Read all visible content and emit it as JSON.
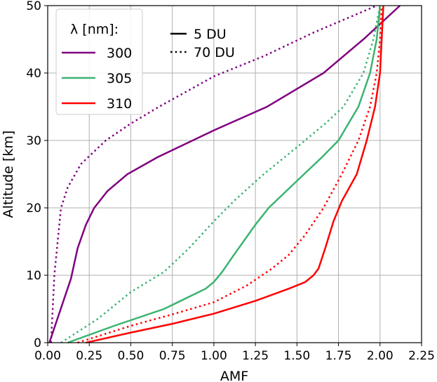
{
  "chart_data": {
    "type": "line",
    "xlabel": "AMF",
    "ylabel": "Altitude [km]",
    "xlim": [
      0,
      2.25
    ],
    "ylim": [
      0,
      50
    ],
    "grid": true,
    "xticks": [
      "0.00",
      "0.25",
      "0.50",
      "0.75",
      "1.00",
      "1.25",
      "1.50",
      "1.75",
      "2.00",
      "2.25"
    ],
    "yticks": [
      "0",
      "10",
      "20",
      "30",
      "40",
      "50"
    ],
    "legend_title": "λ [nm]:",
    "legend_wavelengths": [
      {
        "label": "300",
        "color": "#800080"
      },
      {
        "label": "305",
        "color": "#3cb371"
      },
      {
        "label": "310",
        "color": "#ff0000"
      }
    ],
    "legend_styles": [
      {
        "label": "5 DU",
        "style": "solid"
      },
      {
        "label": "70 DU",
        "style": "dotted"
      }
    ],
    "series": [
      {
        "name": "300 nm, 5 DU",
        "color": "#800080",
        "style": "solid",
        "x": [
          0.01,
          0.14,
          0.18,
          0.23,
          0.28,
          0.36,
          0.48,
          0.66,
          1.0,
          1.32,
          1.66,
          1.9,
          2.12
        ],
        "y": [
          0,
          9.5,
          14,
          17.5,
          20,
          22.5,
          25,
          27.5,
          31.5,
          35,
          40,
          45,
          50
        ]
      },
      {
        "name": "300 nm, 70 DU",
        "color": "#800080",
        "style": "dotted",
        "x": [
          0.02,
          0.04,
          0.06,
          0.08,
          0.12,
          0.2,
          0.35,
          0.5,
          0.67,
          1.0,
          1.3,
          1.6,
          1.98
        ],
        "y": [
          0,
          10,
          15,
          20,
          23,
          26.5,
          30,
          32.5,
          35,
          39.5,
          42.5,
          46,
          50
        ]
      },
      {
        "name": "305 nm, 5 DU",
        "color": "#3cb371",
        "style": "solid",
        "x": [
          0.12,
          0.4,
          0.7,
          0.95,
          1.0,
          1.05,
          1.12,
          1.25,
          1.33,
          1.5,
          1.65,
          1.75,
          1.87,
          1.94,
          1.98,
          2.0
        ],
        "y": [
          0,
          2.5,
          5,
          8,
          9,
          10.5,
          13,
          17.5,
          20,
          24,
          27.5,
          30,
          35,
          40,
          45,
          50
        ]
      },
      {
        "name": "305 nm, 70 DU",
        "color": "#3cb371",
        "style": "dotted",
        "x": [
          0.08,
          0.3,
          0.5,
          0.7,
          0.85,
          1.0,
          1.12,
          1.3,
          1.5,
          1.67,
          1.78,
          1.9,
          1.96,
          2.0
        ],
        "y": [
          0,
          3.5,
          7.5,
          10.5,
          14,
          18,
          21,
          25,
          29,
          32.5,
          35,
          40,
          45,
          50
        ]
      },
      {
        "name": "310 nm, 5 DU",
        "color": "#ff0000",
        "style": "solid",
        "x": [
          0.23,
          0.5,
          0.75,
          1.0,
          1.25,
          1.45,
          1.55,
          1.6,
          1.63,
          1.67,
          1.72,
          1.77,
          1.86,
          1.92,
          1.97,
          2.0,
          2.01,
          2.02
        ],
        "y": [
          0,
          1.5,
          2.8,
          4.3,
          6.2,
          8,
          9,
          10,
          11,
          14,
          18,
          21,
          25,
          30,
          35,
          40,
          45,
          50
        ]
      },
      {
        "name": "310 nm, 70 DU",
        "color": "#ff0000",
        "style": "dotted",
        "x": [
          0.18,
          0.5,
          0.75,
          1.0,
          1.2,
          1.35,
          1.45,
          1.55,
          1.66,
          1.77,
          1.87,
          1.94,
          1.98,
          2.0,
          2.01
        ],
        "y": [
          0,
          2.5,
          4.2,
          6,
          8.5,
          11,
          13,
          16,
          20,
          25,
          30,
          35,
          40,
          45,
          50
        ]
      }
    ]
  }
}
